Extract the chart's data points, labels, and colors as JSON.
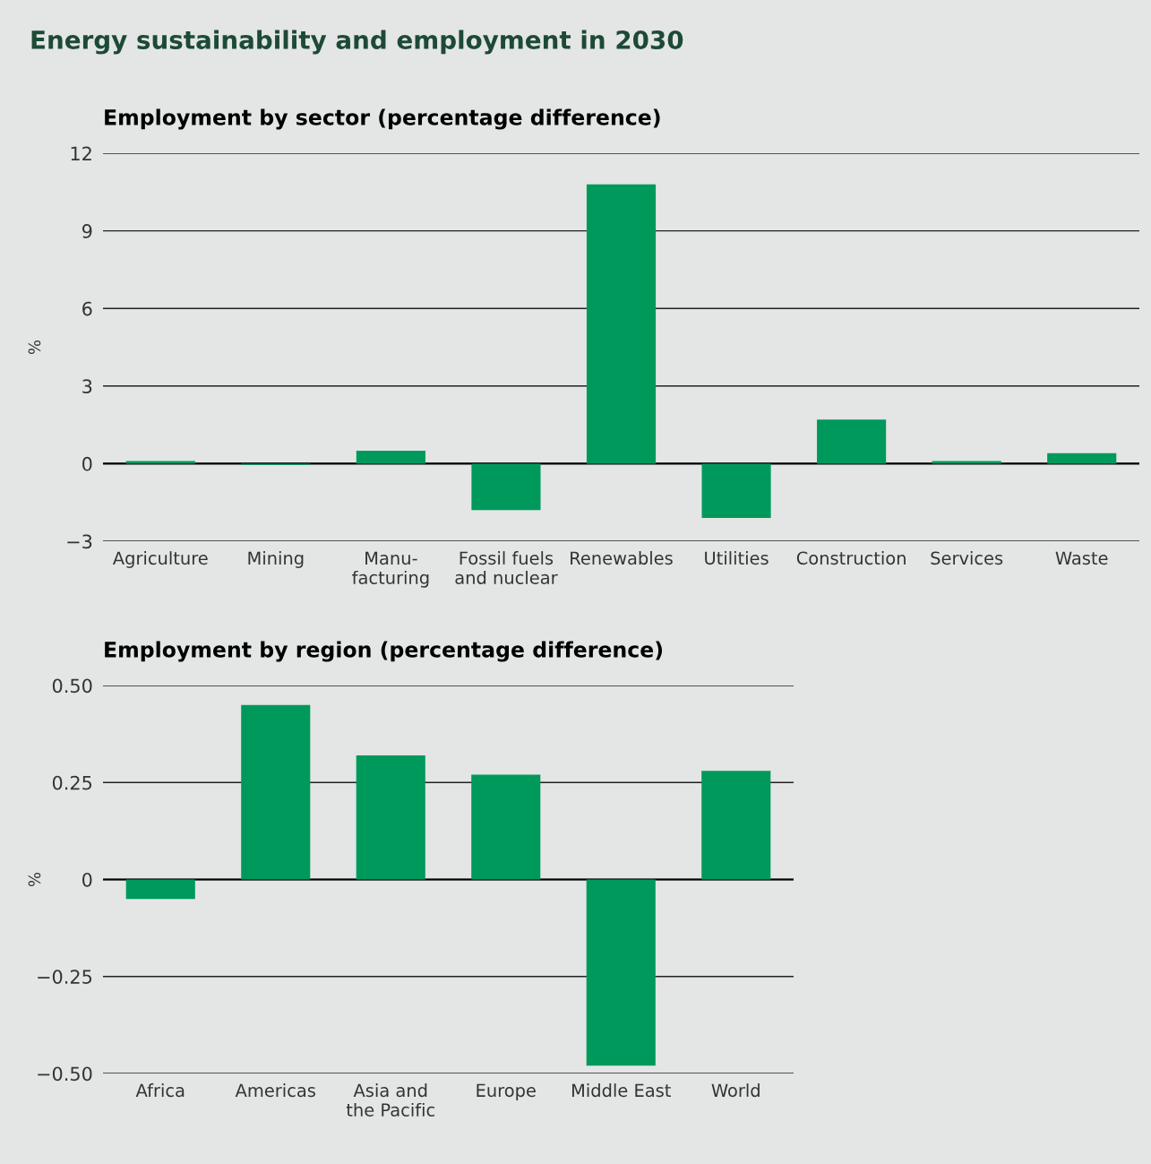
{
  "chart_data": [
    {
      "type": "bar",
      "title": "Energy sustainability and employment in 2030",
      "subtitle": "Employment by sector (percentage difference)",
      "ylabel": "%",
      "categories": [
        "Agriculture",
        "Mining",
        "Manu-\nfacturing",
        "Fossil fuels\nand nuclear",
        "Renewables",
        "Utilities",
        "Construction",
        "Services",
        "Waste"
      ],
      "values": [
        0.1,
        -0.05,
        0.5,
        -1.8,
        10.8,
        -2.1,
        1.7,
        0.1,
        0.4
      ],
      "color": "#00995c",
      "ylim": [
        -3,
        12
      ],
      "yticks": [
        {
          "value": -3,
          "label": "−3"
        },
        0,
        3,
        6,
        9,
        12
      ],
      "grid": "y"
    },
    {
      "type": "bar",
      "title": "Employment by region (percentage difference)",
      "ylabel": "%",
      "categories": [
        "Africa",
        "Americas",
        "Asia and\nthe Pacific",
        "Europe",
        "Middle East",
        "World"
      ],
      "values": [
        -0.05,
        0.45,
        0.32,
        0.27,
        -0.48,
        0.28
      ],
      "color": "#00995c",
      "ylim": [
        -0.5,
        0.5
      ],
      "yticks": [
        {
          "value": -0.5,
          "label": "−0.50"
        },
        {
          "value": -0.25,
          "label": "−0.25"
        },
        0,
        {
          "value": 0.25,
          "label": "0.25"
        },
        {
          "value": 0.5,
          "label": "0.50"
        }
      ],
      "grid": "y"
    }
  ]
}
